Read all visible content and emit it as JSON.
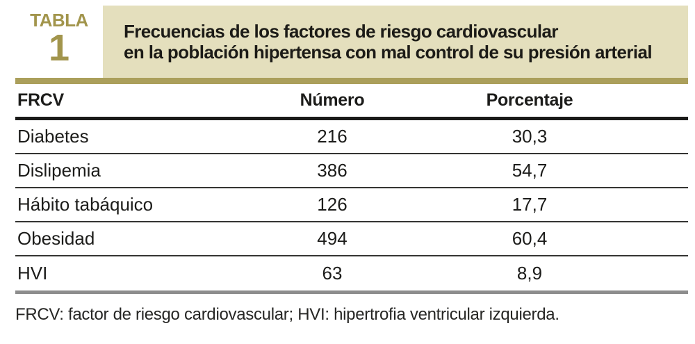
{
  "table_label": {
    "kicker": "TABLA",
    "number": "1"
  },
  "title": {
    "line1": "Frecuencias de los factores de riesgo cardiovascular",
    "line2": "en la población hipertensa con mal control de su presión arterial"
  },
  "columns": {
    "frcv": "FRCV",
    "numero": "Número",
    "porcentaje": "Porcentaje"
  },
  "rows": [
    {
      "frcv": "Diabetes",
      "numero": "216",
      "porcentaje": "30,3"
    },
    {
      "frcv": "Dislipemia",
      "numero": "386",
      "porcentaje": "54,7"
    },
    {
      "frcv": "Hábito tabáquico",
      "numero": "126",
      "porcentaje": "17,7"
    },
    {
      "frcv": "Obesidad",
      "numero": "494",
      "porcentaje": "60,4"
    },
    {
      "frcv": "HVI",
      "numero": "63",
      "porcentaje": "8,9"
    }
  ],
  "footnote": "FRCV: factor de riesgo cardiovascular; HVI: hipertrofia ventricular izquierda.",
  "colors": {
    "gold_text": "#a2954c",
    "gold_bar": "#ab9f5b",
    "beige_box": "#e4dfbd",
    "header_rule": "#1b1b19",
    "row_rule": "#343432",
    "gray_bar": "#8d8d8d",
    "body_text": "#1c1c1a"
  },
  "chart_data": {
    "type": "table",
    "title": "Frecuencias de los factores de riesgo cardiovascular en la población hipertensa con mal control de su presión arterial",
    "columns": [
      "FRCV",
      "Número",
      "Porcentaje"
    ],
    "rows": [
      [
        "Diabetes",
        216,
        30.3
      ],
      [
        "Dislipemia",
        386,
        54.7
      ],
      [
        "Hábito tabáquico",
        126,
        17.7
      ],
      [
        "Obesidad",
        494,
        60.4
      ],
      [
        "HVI",
        63,
        8.9
      ]
    ],
    "footnote": "FRCV: factor de riesgo cardiovascular; HVI: hipertrofia ventricular izquierda."
  }
}
